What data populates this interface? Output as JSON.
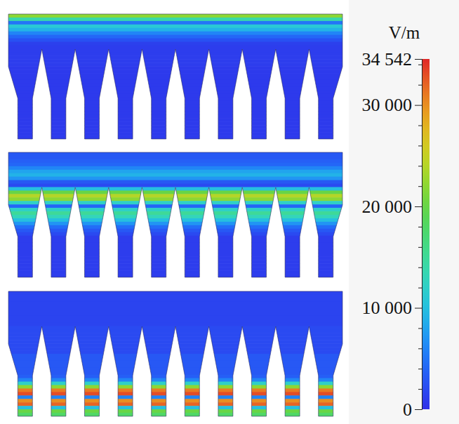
{
  "chart_data": {
    "type": "heatmap",
    "cells": [
      [
        22000,
        14000,
        5000,
        11000,
        9000,
        6000,
        4000,
        2500,
        1200,
        1000,
        1000,
        1000,
        1000,
        1000,
        1000,
        800,
        800,
        800,
        800,
        800,
        800,
        800,
        800,
        800,
        800,
        800,
        800,
        800,
        800,
        800,
        800,
        800,
        800,
        800,
        800,
        800
      ],
      [
        3000,
        3000,
        3500,
        4000,
        6000,
        8000,
        9000,
        7000,
        3000,
        2000,
        10000,
        20000,
        24000,
        22000,
        12000,
        4000,
        12000,
        15000,
        13000,
        10000,
        7000,
        4500,
        3000,
        2000,
        1000,
        1000,
        1000,
        1000,
        1000,
        1000,
        1000,
        1000,
        1000,
        1000,
        1000,
        1000
      ],
      [
        1500,
        1500,
        1500,
        1500,
        1500,
        1500,
        1500,
        1500,
        1500,
        1500,
        2000,
        2000,
        2000,
        2000,
        2000,
        2000,
        2000,
        2000,
        3000,
        3000,
        3000,
        3000,
        3000,
        3000,
        3500,
        6000,
        12000,
        22000,
        31000,
        33000,
        6000,
        30000,
        32000,
        10000,
        20000,
        18000
      ]
    ],
    "colorbar": {
      "label": "V/m",
      "range": [
        0,
        34542
      ],
      "ticks": [
        0,
        {
          "value": 10000,
          "label": "10 000"
        },
        {
          "value": 20000,
          "label": "20 000"
        },
        {
          "value": 30000,
          "label": "30 000"
        },
        {
          "value": 34542,
          "label": "34 542"
        }
      ],
      "minor_ticks": [
        2000,
        4000,
        6000,
        8000,
        12000,
        14000,
        16000,
        18000,
        22000,
        24000,
        26000,
        28000,
        32000,
        34000
      ]
    }
  }
}
